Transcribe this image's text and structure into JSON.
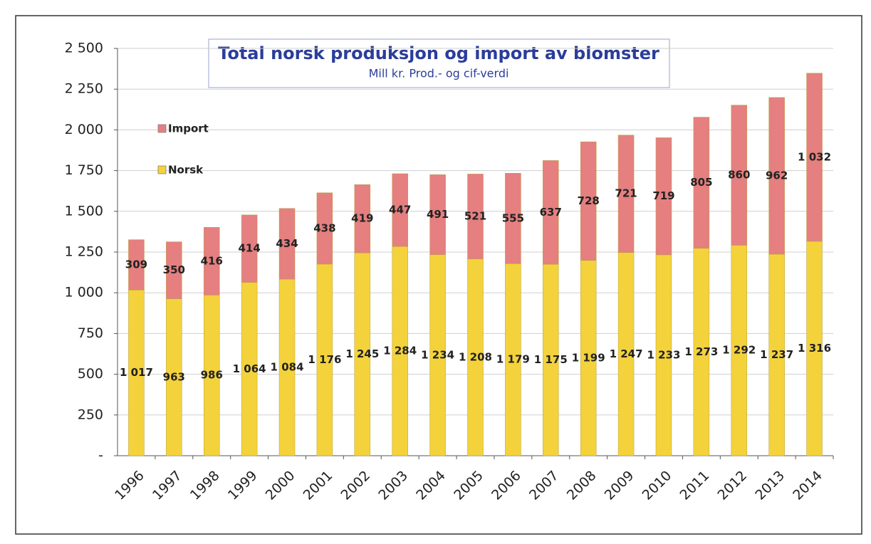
{
  "chart_data": {
    "type": "stacked_bar",
    "title": "Total norsk produksjon og import av blomster",
    "subtitle": "Mill kr.  Prod.- og cif-verdi",
    "categories": [
      "1996",
      "1997",
      "1998",
      "1999",
      "2000",
      "2001",
      "2002",
      "2003",
      "2004",
      "2005",
      "2006",
      "2007",
      "2008",
      "2009",
      "2010",
      "2011",
      "2012",
      "2013",
      "2014"
    ],
    "series": [
      {
        "name": "Norsk",
        "color": "#f3d23c",
        "values": [
          1017,
          963,
          986,
          1064,
          1084,
          1176,
          1245,
          1284,
          1234,
          1208,
          1179,
          1175,
          1199,
          1247,
          1233,
          1273,
          1292,
          1237,
          1316
        ],
        "value_labels": [
          "1 017",
          "963",
          "986",
          "1 064",
          "1 084",
          "1 176",
          "1 245",
          "1 284",
          "1 234",
          "1 208",
          "1 179",
          "1 175",
          "1 199",
          "1 247",
          "1 233",
          "1 273",
          "1 292",
          "1 237",
          "1 316"
        ]
      },
      {
        "name": "Import",
        "color": "#e57f80",
        "values": [
          309,
          350,
          416,
          414,
          434,
          438,
          419,
          447,
          491,
          521,
          555,
          637,
          728,
          721,
          719,
          805,
          860,
          962,
          1032
        ],
        "value_labels": [
          "309",
          "350",
          "416",
          "414",
          "434",
          "438",
          "419",
          "447",
          "491",
          "521",
          "555",
          "637",
          "728",
          "721",
          "719",
          "805",
          "860",
          "962",
          "1 032"
        ]
      }
    ],
    "ylim": [
      0,
      2500
    ],
    "yticks": [
      {
        "value": 0,
        "label": "-"
      },
      250,
      500,
      750,
      {
        "value": 1000,
        "label": "1 000"
      },
      {
        "value": 1250,
        "label": "1 250"
      },
      {
        "value": 1500,
        "label": "1 500"
      },
      {
        "value": 1750,
        "label": "1 750"
      },
      {
        "value": 2000,
        "label": "2 000"
      },
      {
        "value": 2250,
        "label": "2 250"
      },
      {
        "value": 2500,
        "label": "2 500"
      }
    ],
    "grid": true,
    "legend": "upper left"
  }
}
